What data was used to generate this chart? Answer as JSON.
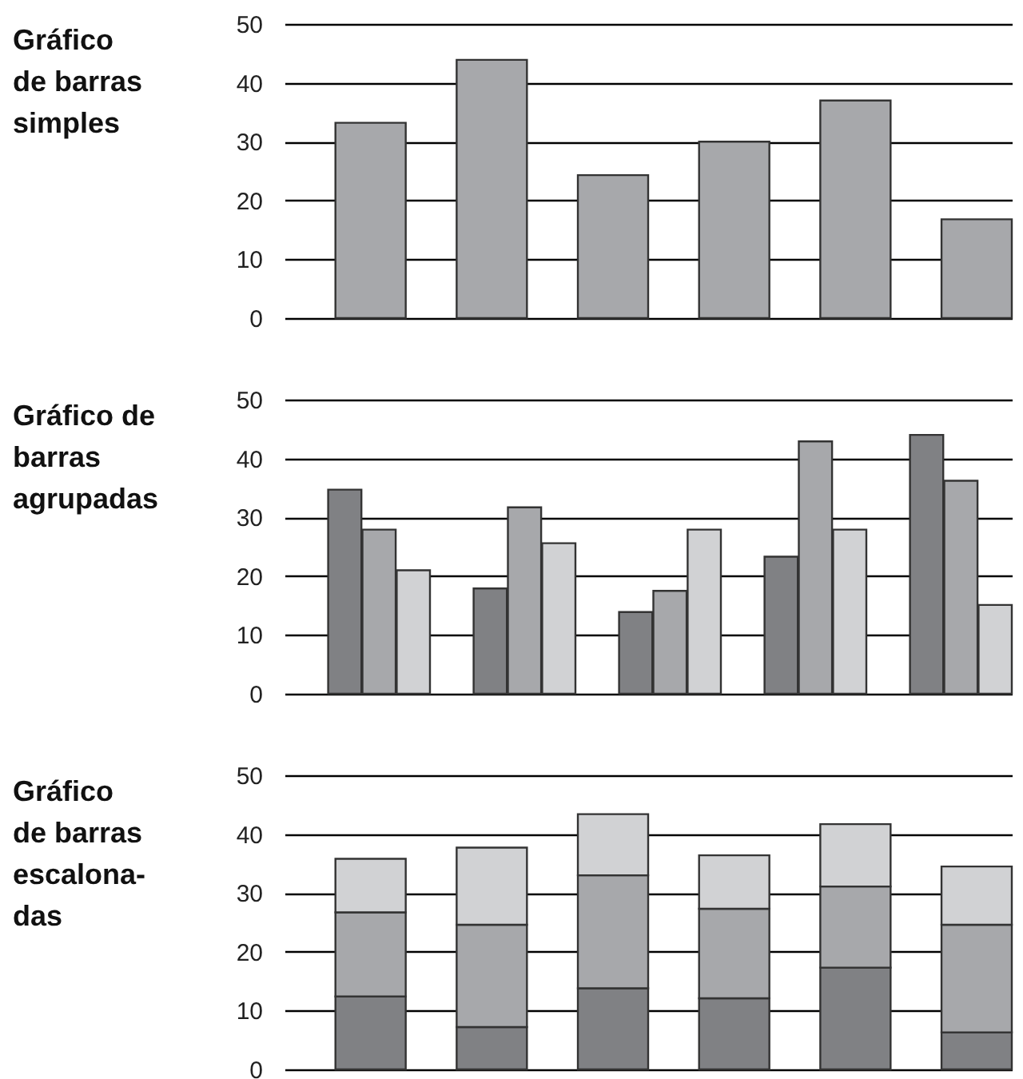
{
  "chart_data": [
    {
      "type": "bar",
      "title": "Gráfico\nde barras\nsimples",
      "categories": [
        null,
        null,
        null,
        null,
        null,
        null
      ],
      "values": [
        33.2,
        43.9,
        24.3,
        30,
        37,
        16.8
      ],
      "color": "#a7a8ab",
      "ylim": [
        0,
        50
      ],
      "yticks": [
        0,
        10,
        20,
        30,
        40,
        50
      ],
      "grid": "y",
      "legend": false
    },
    {
      "type": "bar",
      "title": "Gráfico de\nbarras\nagrupadas",
      "categories": [
        null,
        null,
        null,
        null,
        null
      ],
      "series": [
        {
          "color": "#808184",
          "values": [
            34.7,
            17.9,
            13.9,
            23.3,
            44
          ]
        },
        {
          "color": "#a7a8ab",
          "values": [
            27.9,
            31.7,
            17.5,
            42.9,
            36.2
          ]
        },
        {
          "color": "#d1d2d4",
          "values": [
            21,
            25.6,
            27.9,
            27.9,
            15.1
          ]
        }
      ],
      "ylim": [
        0,
        50
      ],
      "yticks": [
        0,
        10,
        20,
        30,
        40,
        50
      ],
      "grid": "y",
      "legend": false
    },
    {
      "type": "bar",
      "title": "Gráfico\nde barras\nescalona-\ndas",
      "stacked": true,
      "categories": [
        null,
        null,
        null,
        null,
        null,
        null
      ],
      "series": [
        {
          "color": "#808184",
          "values": [
            12.4,
            7.2,
            13.8,
            12.1,
            17.3,
            6.3
          ]
        },
        {
          "color": "#a7a8ab",
          "values": [
            14.3,
            17.4,
            19.2,
            15.2,
            13.8,
            18.3
          ]
        },
        {
          "color": "#d1d2d4",
          "values": [
            9.1,
            13.1,
            10.4,
            9.1,
            10.6,
            9.9
          ]
        }
      ],
      "ylim": [
        0,
        50
      ],
      "yticks": [
        0,
        10,
        20,
        30,
        40,
        50
      ],
      "grid": "y",
      "legend": false
    }
  ]
}
